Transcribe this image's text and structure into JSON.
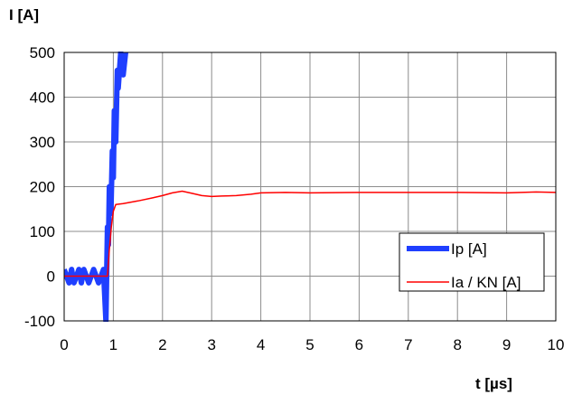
{
  "chart_data": {
    "type": "line",
    "ylabel": "I  [A]",
    "xlabel": "t  [µs]",
    "xlim": [
      0,
      10
    ],
    "ylim": [
      -100,
      500
    ],
    "x_ticks": [
      "0",
      "1",
      "2",
      "3",
      "4",
      "5",
      "6",
      "7",
      "8",
      "9",
      "10"
    ],
    "y_ticks": [
      "500",
      "400",
      "300",
      "200",
      "100",
      "0",
      "-100"
    ],
    "grid": true,
    "legend_position": "lower-right",
    "series": [
      {
        "name": "Ip  [A]",
        "color": "#1f3fff",
        "x": [
          0.0,
          0.1,
          0.15,
          0.2,
          0.3,
          0.35,
          0.4,
          0.5,
          0.6,
          0.7,
          0.8,
          0.85,
          0.88,
          0.9,
          0.92,
          0.95,
          0.98,
          1.0,
          1.02,
          1.05,
          1.08,
          1.1,
          1.15,
          1.2,
          1.25
        ],
        "y": [
          15,
          -15,
          15,
          -15,
          15,
          -15,
          15,
          -15,
          15,
          -15,
          15,
          -100,
          110,
          70,
          200,
          140,
          280,
          220,
          370,
          300,
          460,
          420,
          500,
          450,
          500
        ]
      },
      {
        "name": "Ia / KN [A]",
        "color": "#ff0000",
        "x": [
          0.0,
          0.5,
          0.8,
          0.88,
          0.92,
          0.96,
          1.0,
          1.05,
          1.2,
          1.5,
          1.8,
          2.0,
          2.2,
          2.4,
          2.6,
          2.8,
          3.0,
          3.2,
          3.5,
          3.8,
          4.0,
          4.5,
          5.0,
          6.0,
          7.0,
          8.0,
          9.0,
          9.6,
          10.0
        ],
        "y": [
          0,
          0,
          0,
          0,
          60,
          110,
          145,
          160,
          162,
          168,
          175,
          180,
          186,
          190,
          185,
          180,
          178,
          179,
          180,
          183,
          186,
          187,
          186,
          187,
          187,
          187,
          186,
          188,
          187
        ]
      }
    ]
  }
}
